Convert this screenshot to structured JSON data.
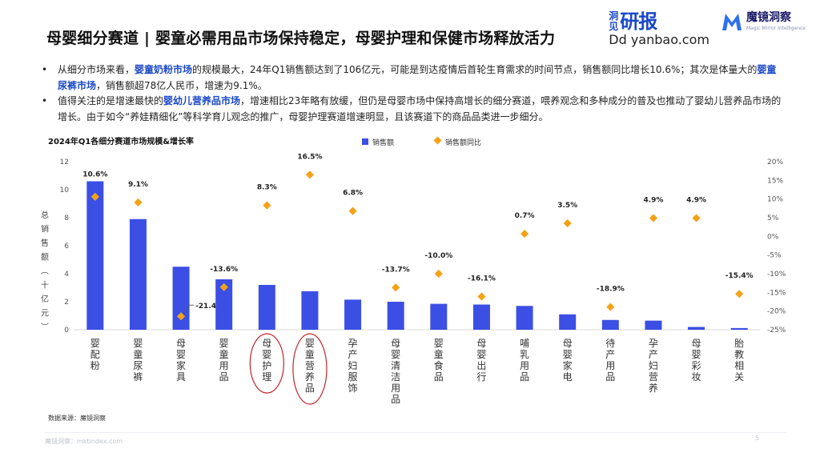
{
  "page": {
    "title": "母婴细分赛道 | 婴童必需用品市场保持稳定，母婴护理和保健市场释放活力",
    "bullets": [
      {
        "parts": [
          {
            "text": "从细分市场来看，"
          },
          {
            "text": "婴童奶粉市场",
            "hl": true
          },
          {
            "text": "的规模最大，24年Q1销售额达到了106亿元，可能是到达疫情后首轮生育需求的时间节点，销售额同比增长10.6%；其次是体量大的"
          },
          {
            "text": "婴童尿裤市场",
            "hl": true
          },
          {
            "text": "，销售额超78亿人民币，增速为9.1%。"
          }
        ]
      },
      {
        "parts": [
          {
            "text": "值得关注的是增速最快的"
          },
          {
            "text": "婴幼儿营养品市场",
            "hl": true
          },
          {
            "text": "，增速相比23年略有放缓，但仍是母婴市场中保持高增长的细分赛道，喂养观念和多种成分的普及也推动了婴幼儿营养品市场的增长。由于如今“养娃精细化”等科学育儿观念的推广，母婴护理赛道增速明显，且该赛道下的商品品类进一步细分。"
          }
        ]
      }
    ],
    "source": "数据来源：魔镜洞察",
    "footer": "魔镜洞察：mktindex.com",
    "page_number": "5"
  },
  "logos": {
    "dongbao_small": "洞见",
    "dongbao_big": "研报",
    "dongbao_domain": "Dd  yanbao.com",
    "mojing_name": "魔镜洞察",
    "mojing_sub": "Magic Mirror Intelligence"
  },
  "colors": {
    "bar": "#3b4fe4",
    "marker": "#f5a218",
    "highlight": "#1a48c8",
    "circle": "#c0272d"
  },
  "chart_data": {
    "type": "bar",
    "title": "2024年Q1各细分赛道市场规模&增长率",
    "ylabel": "总销售额（十亿元）",
    "legend": {
      "position": "top",
      "items": [
        "销售额",
        "销售额同比"
      ]
    },
    "categories": [
      "婴配粉",
      "婴童尿裤",
      "母婴家具",
      "婴童用品",
      "母婴护理",
      "婴童营养品",
      "孕产妇服饰",
      "母婴清洁用品",
      "婴童食品",
      "母婴出行",
      "哺乳用品",
      "母婴家电",
      "待产用品",
      "孕产妇营养",
      "母婴彩妆",
      "胎教相关"
    ],
    "series": [
      {
        "name": "销售额",
        "type": "bar",
        "axis": "left",
        "values": [
          10.6,
          7.9,
          4.5,
          3.6,
          3.2,
          2.75,
          2.15,
          2.0,
          1.85,
          1.8,
          1.7,
          1.1,
          0.7,
          0.65,
          0.2,
          0.12
        ]
      },
      {
        "name": "销售额同比",
        "type": "scatter",
        "axis": "right",
        "unit": "%",
        "values": [
          10.6,
          9.1,
          -21.4,
          -13.6,
          8.3,
          16.5,
          6.8,
          -13.7,
          -10.0,
          -16.1,
          0.7,
          3.5,
          -18.9,
          4.9,
          4.9,
          -15.4
        ],
        "labels": [
          "10.6%",
          "9.1%",
          "-21.4%",
          "-13.6%",
          "8.3%",
          "16.5%",
          "6.8%",
          "-13.7%",
          "-10.0%",
          "-16.1%",
          "0.7%",
          "3.5%",
          "-18.9%",
          "4.9%",
          "4.9%",
          "-15.4%"
        ]
      }
    ],
    "y_left": {
      "min": 0,
      "max": 12,
      "ticks": [
        "0",
        "2",
        "4",
        "6",
        "8",
        "10",
        "12"
      ]
    },
    "y_right": {
      "min": -25,
      "max": 20,
      "ticks": [
        "-25%",
        "-20%",
        "-15%",
        "-10%",
        "-5%",
        "0%",
        "5%",
        "10%",
        "15%",
        "20%"
      ]
    },
    "grid": false,
    "highlighted_categories": [
      "母婴护理",
      "婴童营养品"
    ]
  }
}
